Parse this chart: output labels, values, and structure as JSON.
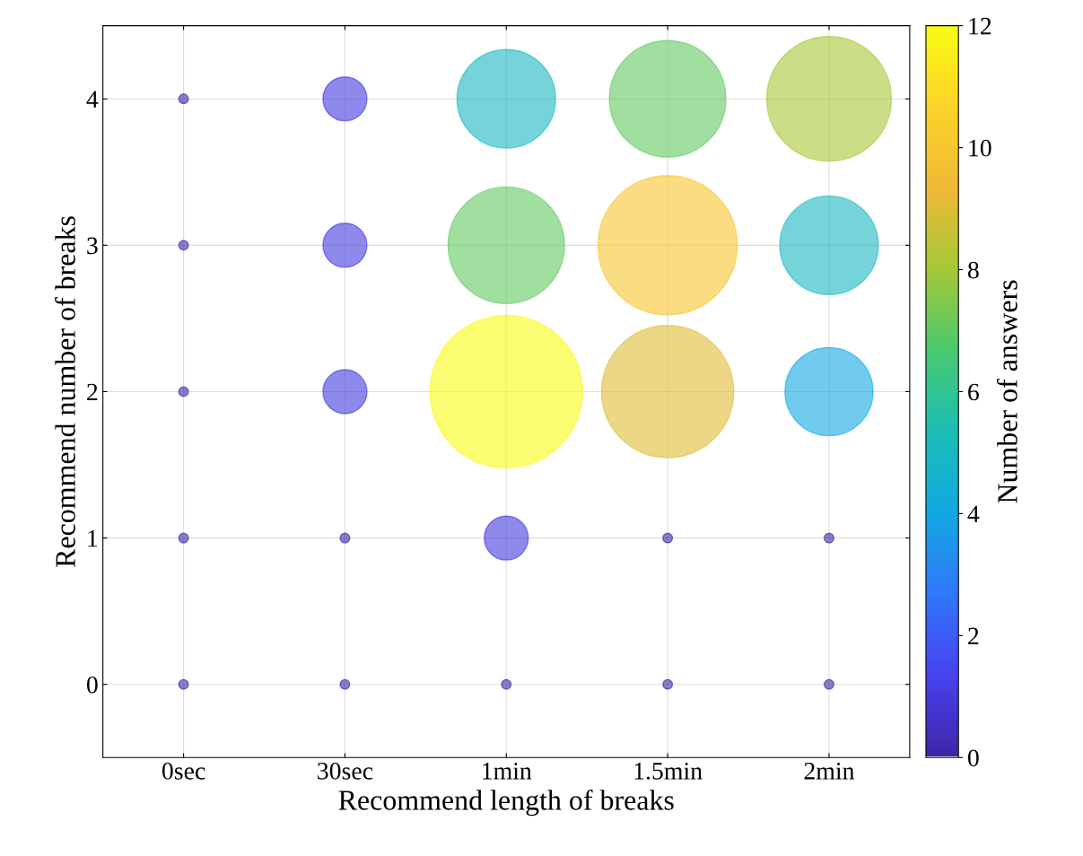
{
  "chart_data": {
    "type": "bubble",
    "xlabel": "Recommend length of breaks",
    "ylabel": "Recommend number of breaks",
    "clabel": "Number of answers",
    "categories": [
      "0sec",
      "30sec",
      "1min",
      "1.5min",
      "2min"
    ],
    "series": [
      {
        "x": [
          "0sec",
          "0sec",
          "0sec",
          "0sec",
          "0sec",
          "30sec",
          "30sec",
          "30sec",
          "30sec",
          "30sec",
          "1min",
          "1min",
          "1min",
          "1min",
          "1min",
          "1.5min",
          "1.5min",
          "1.5min",
          "1.5min",
          "1.5min",
          "2min",
          "2min",
          "2min",
          "2min",
          "2min"
        ],
        "values": [
          0,
          1,
          2,
          3,
          4,
          0,
          1,
          2,
          3,
          4,
          0,
          1,
          2,
          3,
          4,
          0,
          1,
          2,
          3,
          4,
          0,
          1,
          2,
          3,
          4
        ],
        "cvalues": [
          0,
          0,
          0,
          0,
          0,
          0,
          0,
          1,
          1,
          1,
          0,
          1,
          12,
          7,
          5,
          0,
          0,
          9,
          10,
          7,
          0,
          0,
          4,
          5,
          8
        ],
        "sizes": [
          0.004,
          0.004,
          0.004,
          0.004,
          0.004,
          0.004,
          0.004,
          0.083,
          0.083,
          0.083,
          0.004,
          0.083,
          1,
          0.583,
          0.417,
          0.004,
          0.004,
          0.75,
          0.833,
          0.583,
          0.004,
          0.004,
          0.333,
          0.417,
          0.667
        ]
      }
    ],
    "ylim": [
      -0.5,
      4.5
    ],
    "yticks": [
      0,
      1,
      2,
      3,
      4
    ],
    "clim": [
      0,
      12
    ],
    "cticks": [
      0,
      2,
      4,
      6,
      8,
      10,
      12
    ],
    "grid": true,
    "legend": false
  }
}
